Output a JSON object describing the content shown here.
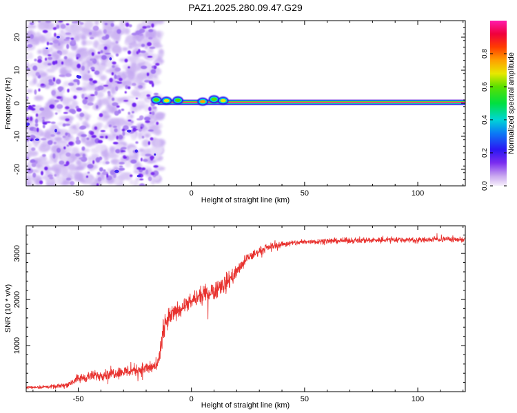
{
  "title": "PAZ1.2025.280.09.47.G29",
  "colorbar": {
    "label": "Normalized spectral amplitude",
    "ticks": [
      "0.0",
      "0.2",
      "0.4",
      "0.6",
      "0.8"
    ],
    "tick_values": [
      0.0,
      0.2,
      0.4,
      0.6,
      0.8
    ],
    "range": [
      0,
      1
    ]
  },
  "chart_data": [
    {
      "type": "heatmap",
      "name": "spectrogram",
      "xlabel": "Height of straight line (km)",
      "ylabel": "Frequency (Hz)",
      "xlim": [
        -73,
        121
      ],
      "ylim": [
        -25,
        25
      ],
      "xticks": [
        -50,
        0,
        50,
        100
      ],
      "xtick_labels": [
        "-50",
        "0",
        "50",
        "100"
      ],
      "yticks": [
        -20,
        -10,
        0,
        10,
        20
      ],
      "ytick_labels": [
        "-20",
        "-10",
        "0",
        "10",
        "20"
      ],
      "noise_region_x": [
        -73,
        -15
      ],
      "signal_line": {
        "frequency": 0.3,
        "x_start": -15,
        "x_end": 121,
        "amplitude": 1.0
      },
      "signal_blobs": [
        {
          "x": -15.5,
          "f": 1.0,
          "amp": 0.6
        },
        {
          "x": -11,
          "f": 0.8,
          "amp": 0.65
        },
        {
          "x": -6,
          "f": 0.9,
          "amp": 0.6
        },
        {
          "x": 5,
          "f": 0.5,
          "amp": 0.7
        },
        {
          "x": 10,
          "f": 1.2,
          "amp": 0.6
        },
        {
          "x": 14,
          "f": 0.8,
          "amp": 0.65
        }
      ]
    },
    {
      "type": "line",
      "name": "snr",
      "xlabel": "Height of straight line (km)",
      "ylabel": "SNR (10 * v/v)",
      "xlim": [
        -73,
        121
      ],
      "ylim": [
        0,
        3600
      ],
      "xticks": [
        -50,
        0,
        50,
        100
      ],
      "xtick_labels": [
        "-50",
        "0",
        "50",
        "100"
      ],
      "yticks": [
        1000,
        2000,
        3000
      ],
      "ytick_labels": [
        "1000",
        "2000",
        "3000"
      ],
      "color": "#e8322f",
      "series": [
        {
          "name": "SNR",
          "x": [
            -73,
            -60,
            -55,
            -50,
            -45,
            -40,
            -35,
            -30,
            -25,
            -20,
            -15,
            -13,
            -11,
            -9,
            -5,
            0,
            5,
            10,
            15,
            20,
            25,
            30,
            35,
            40,
            50,
            60,
            70,
            80,
            90,
            100,
            110,
            121
          ],
          "y": [
            90,
            110,
            150,
            280,
            330,
            360,
            400,
            430,
            470,
            500,
            560,
            1100,
            1500,
            1650,
            1800,
            1950,
            2100,
            2200,
            2350,
            2600,
            2900,
            3050,
            3150,
            3200,
            3250,
            3270,
            3280,
            3290,
            3300,
            3290,
            3310,
            3300
          ],
          "noise": [
            50,
            60,
            80,
            150,
            160,
            170,
            180,
            190,
            200,
            210,
            220,
            400,
            350,
            300,
            250,
            250,
            280,
            300,
            320,
            220,
            160,
            130,
            110,
            100,
            90,
            90,
            90,
            90,
            90,
            90,
            90,
            90
          ]
        }
      ]
    }
  ]
}
